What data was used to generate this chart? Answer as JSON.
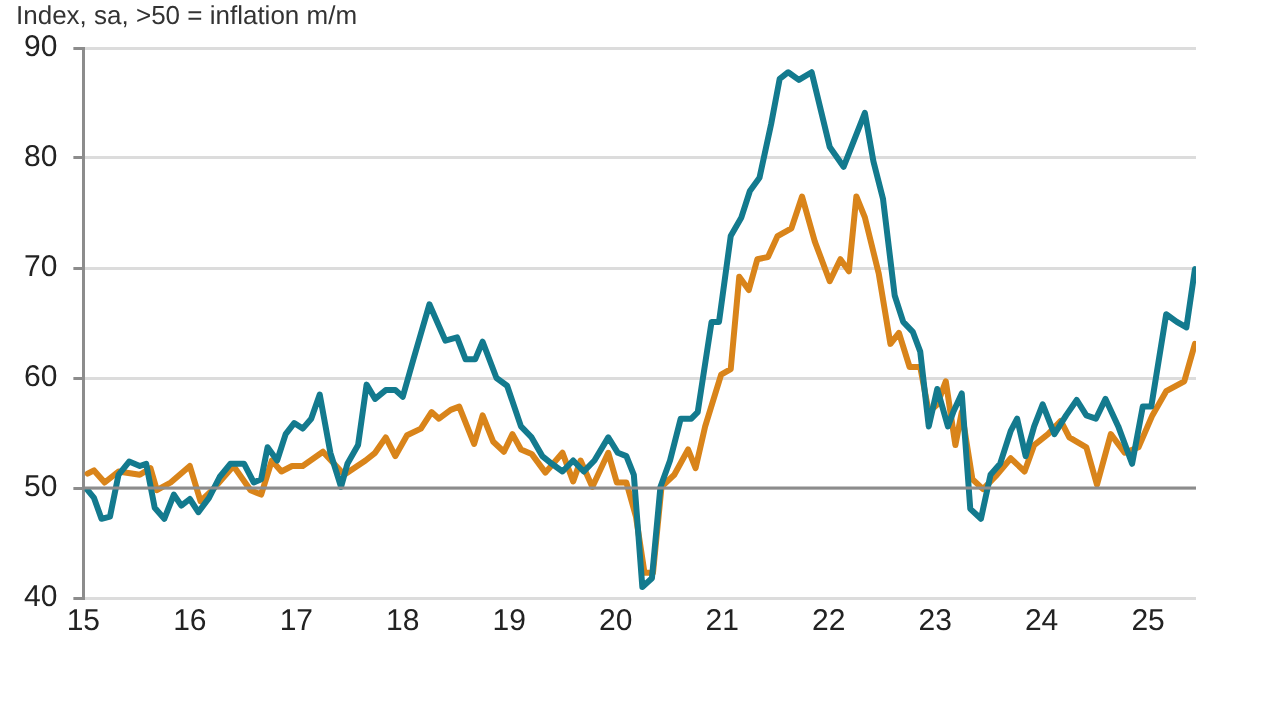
{
  "chart_data": {
    "type": "line",
    "ylabel": "Index, sa, >50 = inflation m/m",
    "xlim": [
      2015,
      2025.45
    ],
    "xticks": [
      {
        "value": 2015,
        "label": "15"
      },
      {
        "value": 2016,
        "label": "16"
      },
      {
        "value": 2017,
        "label": "17"
      },
      {
        "value": 2018,
        "label": "18"
      },
      {
        "value": 2019,
        "label": "19"
      },
      {
        "value": 2020,
        "label": "20"
      },
      {
        "value": 2021,
        "label": "21"
      },
      {
        "value": 2022,
        "label": "22"
      },
      {
        "value": 2023,
        "label": "23"
      },
      {
        "value": 2024,
        "label": "24"
      },
      {
        "value": 2025,
        "label": "25"
      }
    ],
    "ylim": [
      40,
      90
    ],
    "yticks": [
      40,
      50,
      60,
      70,
      80,
      90
    ],
    "grid": "y",
    "legend": false,
    "marker": "none",
    "line_style": "solid",
    "ref_lines": [
      {
        "axis": "y",
        "value": 50,
        "color": "#8c8c8c"
      }
    ],
    "series": [
      {
        "color": "#137a8e",
        "x": [
          2015.04,
          2015.1,
          2015.17,
          2015.25,
          2015.33,
          2015.43,
          2015.53,
          2015.59,
          2015.67,
          2015.76,
          2015.85,
          2015.92,
          2016.0,
          2016.08,
          2016.18,
          2016.28,
          2016.38,
          2016.51,
          2016.6,
          2016.67,
          2016.73,
          2016.82,
          2016.9,
          2016.98,
          2017.06,
          2017.14,
          2017.22,
          2017.32,
          2017.42,
          2017.48,
          2017.58,
          2017.66,
          2017.74,
          2017.84,
          2017.93,
          2018.0,
          2018.1,
          2018.25,
          2018.4,
          2018.51,
          2018.59,
          2018.68,
          2018.75,
          2018.88,
          2018.98,
          2019.11,
          2019.21,
          2019.31,
          2019.4,
          2019.5,
          2019.6,
          2019.7,
          2019.8,
          2019.93,
          2020.02,
          2020.1,
          2020.17,
          2020.25,
          2020.34,
          2020.42,
          2020.51,
          2020.61,
          2020.71,
          2020.77,
          2020.9,
          2020.97,
          2021.08,
          2021.18,
          2021.26,
          2021.35,
          2021.46,
          2021.54,
          2021.62,
          2021.72,
          2021.84,
          2022.01,
          2022.14,
          2022.34,
          2022.42,
          2022.51,
          2022.62,
          2022.7,
          2022.79,
          2022.86,
          2022.94,
          2023.02,
          2023.12,
          2023.17,
          2023.25,
          2023.33,
          2023.43,
          2023.52,
          2023.61,
          2023.71,
          2023.77,
          2023.85,
          2023.93,
          2024.01,
          2024.12,
          2024.23,
          2024.33,
          2024.42,
          2024.51,
          2024.6,
          2024.72,
          2024.85,
          2024.95,
          2025.03,
          2025.17,
          2025.27,
          2025.36,
          2025.44
        ],
        "values": [
          49.8,
          49.1,
          47.2,
          47.4,
          51.2,
          52.4,
          52,
          52.2,
          48.2,
          47.2,
          49.4,
          48.4,
          49,
          47.8,
          49.1,
          51,
          52.2,
          52.2,
          50.5,
          50.8,
          53.7,
          52.5,
          54.9,
          55.9,
          55.4,
          56.3,
          58.5,
          53.2,
          50.1,
          52.2,
          53.9,
          59.4,
          58.1,
          58.9,
          58.9,
          58.3,
          61.7,
          66.7,
          63.4,
          63.7,
          61.7,
          61.7,
          63.3,
          60,
          59.3,
          55.6,
          54.6,
          52.9,
          52.2,
          51.5,
          52.5,
          51.5,
          52.5,
          54.6,
          53.2,
          52.9,
          51.2,
          41,
          41.8,
          50.1,
          52.5,
          56.3,
          56.3,
          56.9,
          65.1,
          65.1,
          72.9,
          74.6,
          77,
          78.2,
          83.1,
          87.2,
          87.8,
          87.1,
          87.8,
          81,
          79.2,
          84.1,
          79.7,
          76.3,
          67.5,
          65.1,
          64.2,
          62.4,
          55.6,
          59,
          55.6,
          56.9,
          58.6,
          48.1,
          47.2,
          51.2,
          52.2,
          55.2,
          56.3,
          52.9,
          55.6,
          57.6,
          54.9,
          56.6,
          58,
          56.6,
          56.3,
          58.1,
          55.6,
          52.2,
          57.4,
          57.4,
          65.8,
          65.1,
          64.6,
          69.9
        ]
      },
      {
        "color": "#d9841a",
        "x": [
          2015.04,
          2015.1,
          2015.2,
          2015.33,
          2015.53,
          2015.63,
          2015.69,
          2015.82,
          2016.0,
          2016.1,
          2016.21,
          2016.41,
          2016.57,
          2016.67,
          2016.77,
          2016.86,
          2016.96,
          2017.06,
          2017.25,
          2017.45,
          2017.65,
          2017.74,
          2017.84,
          2017.93,
          2018.04,
          2018.17,
          2018.27,
          2018.34,
          2018.45,
          2018.53,
          2018.67,
          2018.75,
          2018.85,
          2018.95,
          2019.03,
          2019.11,
          2019.21,
          2019.34,
          2019.5,
          2019.6,
          2019.67,
          2019.78,
          2019.93,
          2020.01,
          2020.1,
          2020.19,
          2020.27,
          2020.35,
          2020.43,
          2020.55,
          2020.68,
          2020.75,
          2020.84,
          2020.99,
          2021.08,
          2021.16,
          2021.25,
          2021.33,
          2021.43,
          2021.52,
          2021.65,
          2021.75,
          2021.87,
          2022.01,
          2022.11,
          2022.19,
          2022.26,
          2022.34,
          2022.47,
          2022.58,
          2022.66,
          2022.76,
          2022.86,
          2022.94,
          2023.02,
          2023.1,
          2023.19,
          2023.25,
          2023.35,
          2023.45,
          2023.58,
          2023.71,
          2023.84,
          2023.93,
          2024.06,
          2024.18,
          2024.26,
          2024.42,
          2024.52,
          2024.65,
          2024.78,
          2024.91,
          2025.04,
          2025.17,
          2025.34,
          2025.44
        ],
        "values": [
          51.3,
          51.6,
          50.5,
          51.5,
          51.2,
          51.8,
          49.8,
          50.5,
          52,
          48.8,
          49.8,
          52,
          49.8,
          49.4,
          52.5,
          51.5,
          52,
          52,
          53.3,
          51.2,
          52.5,
          53.2,
          54.6,
          52.9,
          54.8,
          55.4,
          56.9,
          56.3,
          57.1,
          57.4,
          54,
          56.6,
          54.2,
          53.3,
          54.9,
          53.5,
          53.1,
          51.4,
          53.2,
          50.6,
          52.5,
          50.1,
          53.2,
          50.5,
          50.5,
          47.4,
          42.3,
          42.3,
          50.1,
          51.2,
          53.5,
          51.8,
          55.6,
          60.3,
          60.8,
          69.2,
          68,
          70.8,
          71,
          72.9,
          73.6,
          76.5,
          72.4,
          68.8,
          70.8,
          69.7,
          76.5,
          74.6,
          69.5,
          63.1,
          64.1,
          61,
          61,
          56.9,
          57.6,
          59.7,
          53.9,
          56.9,
          50.8,
          49.9,
          51.2,
          52.7,
          51.5,
          53.9,
          54.9,
          56.1,
          54.6,
          53.7,
          50.3,
          54.9,
          53.2,
          53.7,
          56.6,
          58.8,
          59.7,
          63.1
        ]
      }
    ]
  }
}
